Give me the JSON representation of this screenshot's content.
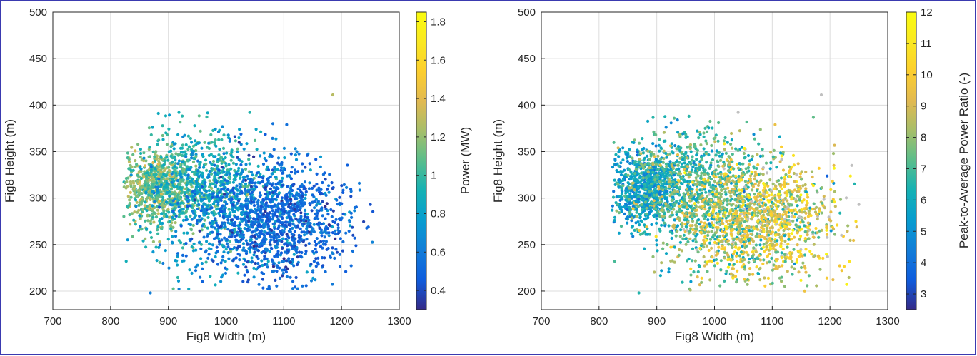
{
  "chart_data": [
    {
      "type": "scatter",
      "xlabel": "Fig8 Width (m)",
      "ylabel": "Fig8 Height (m)",
      "xlim": [
        700,
        1300
      ],
      "ylim": [
        180,
        500
      ],
      "xticks": [
        700,
        800,
        900,
        1000,
        1100,
        1200,
        1300
      ],
      "yticks": [
        200,
        250,
        300,
        350,
        400,
        450,
        500
      ],
      "grid": true,
      "colorbar": {
        "label": "Power (MW)",
        "range": [
          0.3,
          1.85
        ],
        "ticks": [
          "0.4",
          "0.6",
          "0.8",
          "1",
          "1.2",
          "1.4",
          "1.6",
          "1.8"
        ],
        "colormap": "parula"
      },
      "clusters": [
        {
          "cx": 880,
          "cy": 310,
          "sx": 30,
          "sy": 20,
          "n": 650,
          "color_mean": 1.15,
          "color_sd": 0.12
        },
        {
          "cx": 950,
          "cy": 315,
          "sx": 55,
          "sy": 28,
          "n": 700,
          "color_mean": 0.95,
          "color_sd": 0.12
        },
        {
          "cx": 1020,
          "cy": 285,
          "sx": 75,
          "sy": 35,
          "n": 700,
          "color_mean": 0.7,
          "color_sd": 0.12
        },
        {
          "cx": 1090,
          "cy": 275,
          "sx": 60,
          "sy": 30,
          "n": 950,
          "color_mean": 0.5,
          "color_sd": 0.08
        }
      ],
      "highlight_points": [
        {
          "x": 1185,
          "y": 411,
          "c": 1.28
        },
        {
          "x": 1041,
          "y": 392,
          "c": 0.95
        },
        {
          "x": 869,
          "y": 198,
          "c": 0.62
        },
        {
          "x": 1250,
          "y": 293,
          "c": 0.42
        },
        {
          "x": 827,
          "y": 232,
          "c": 0.9
        },
        {
          "x": 1220,
          "y": 260,
          "c": 0.4
        },
        {
          "x": 1105,
          "y": 379,
          "c": 0.55
        },
        {
          "x": 1057,
          "y": 207,
          "c": 0.58
        }
      ]
    },
    {
      "type": "scatter",
      "xlabel": "Fig8 Width (m)",
      "ylabel": "Fig8 Height (m)",
      "xlim": [
        700,
        1300
      ],
      "ylim": [
        180,
        500
      ],
      "xticks": [
        700,
        800,
        900,
        1000,
        1100,
        1200,
        1300
      ],
      "yticks": [
        200,
        250,
        300,
        350,
        400,
        450,
        500
      ],
      "grid": true,
      "colorbar": {
        "label": "Peak-to-Average Power Ratio (-)",
        "range": [
          2.5,
          12
        ],
        "ticks": [
          "3",
          "4",
          "5",
          "6",
          "7",
          "8",
          "9",
          "10",
          "11",
          "12"
        ],
        "colormap": "parula",
        "out_of_range_color": "#c0c0c0"
      },
      "clusters": [
        {
          "cx": 880,
          "cy": 310,
          "sx": 30,
          "sy": 20,
          "n": 650,
          "color_mean": 5.5,
          "color_sd": 0.7
        },
        {
          "cx": 950,
          "cy": 315,
          "sx": 55,
          "sy": 28,
          "n": 700,
          "color_mean": 6.8,
          "color_sd": 1.0
        },
        {
          "cx": 1020,
          "cy": 285,
          "sx": 75,
          "sy": 35,
          "n": 700,
          "color_mean": 7.6,
          "color_sd": 1.3
        },
        {
          "cx": 1090,
          "cy": 275,
          "sx": 60,
          "sy": 30,
          "n": 950,
          "color_mean": 9.2,
          "color_sd": 1.5
        }
      ],
      "highlight_points": [
        {
          "x": 1185,
          "y": 411,
          "c": 13
        },
        {
          "x": 1041,
          "y": 392,
          "c": 13
        },
        {
          "x": 869,
          "y": 198,
          "c": 6.5
        },
        {
          "x": 1250,
          "y": 293,
          "c": 13
        },
        {
          "x": 827,
          "y": 232,
          "c": 7
        },
        {
          "x": 1220,
          "y": 260,
          "c": 13
        },
        {
          "x": 1105,
          "y": 379,
          "c": 9.5
        },
        {
          "x": 1057,
          "y": 207,
          "c": 8
        }
      ]
    }
  ]
}
